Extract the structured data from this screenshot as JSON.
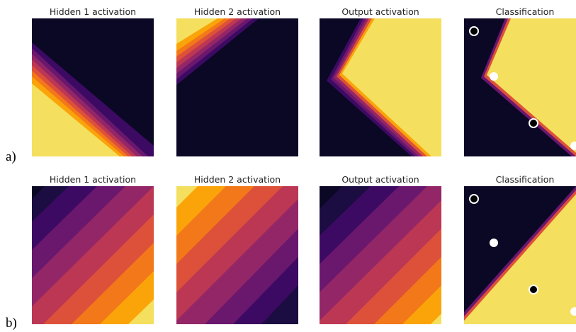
{
  "rows": [
    {
      "label": "a)",
      "panels": [
        {
          "title": "Hidden 1 activation"
        },
        {
          "title": "Hidden 2 activation"
        },
        {
          "title": "Output activation"
        },
        {
          "title": "Classification"
        }
      ]
    },
    {
      "label": "b)",
      "panels": [
        {
          "title": "Hidden 1 activation"
        },
        {
          "title": "Hidden 2 activation"
        },
        {
          "title": "Output activation"
        },
        {
          "title": "Classification"
        }
      ]
    }
  ],
  "colors": {
    "background": "#ffffff",
    "colormap": "inferno",
    "level_0": "#0b0826",
    "level_1": "#3c0a63",
    "level_2": "#6a176e",
    "level_3": "#932667",
    "level_4": "#bc3754",
    "level_5": "#dd513a",
    "level_6": "#f37819",
    "level_7": "#fba40a",
    "level_8": "#f4df5e",
    "point_class_0": "#ffffff",
    "point_class_1": "#000000"
  }
}
